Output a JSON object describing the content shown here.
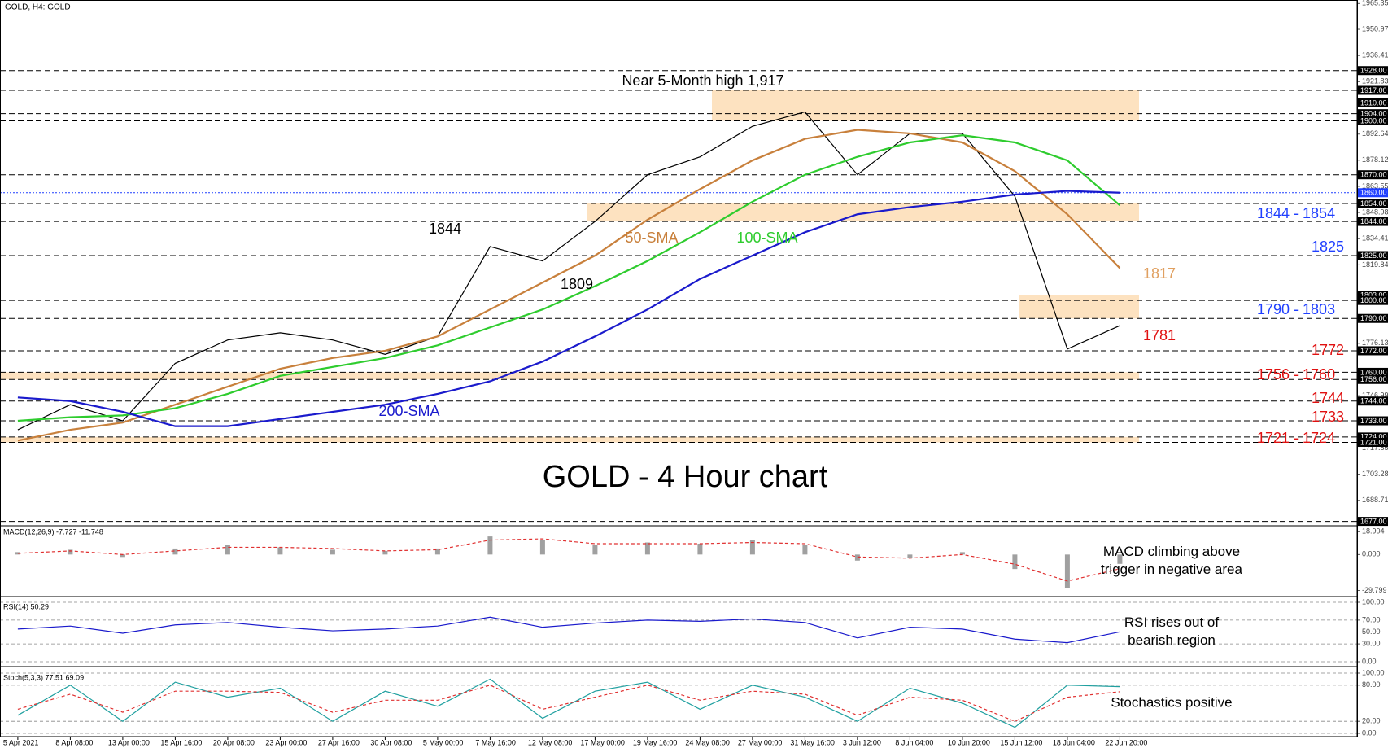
{
  "chart_data": [
    {
      "type": "line",
      "symbol": "GOLD, H4:  GOLD",
      "title": "GOLD - 4 Hour chart",
      "categories": [
        "5 Apr 2021",
        "8 Apr 08:00",
        "13 Apr 00:00",
        "15 Apr 16:00",
        "20 Apr 08:00",
        "23 Apr 00:00",
        "27 Apr 16:00",
        "30 Apr 08:00",
        "5 May 00:00",
        "7 May 16:00",
        "12 May 08:00",
        "17 May 00:00",
        "19 May 16:00",
        "24 May 08:00",
        "27 May 00:00",
        "31 May 16:00",
        "3 Jun 12:00",
        "8 Jun 04:00",
        "10 Jun 20:00",
        "15 Jun 12:00",
        "18 Jun 04:00",
        "22 Jun 20:00"
      ],
      "series": [
        {
          "color": "#000000",
          "values": [
            1728,
            1742,
            1733,
            1765,
            1778,
            1782,
            1778,
            1770,
            1780,
            1830,
            1822,
            1844,
            1870,
            1880,
            1897,
            1905,
            1870,
            1893,
            1893,
            1858,
            1773,
            1786
          ]
        },
        {
          "name": "50-SMA",
          "color": "#c8803c",
          "values": [
            1722,
            1728,
            1732,
            1742,
            1752,
            1762,
            1768,
            1772,
            1780,
            1795,
            1810,
            1825,
            1845,
            1862,
            1878,
            1890,
            1895,
            1893,
            1888,
            1872,
            1848,
            1818
          ]
        },
        {
          "name": "100-SMA",
          "color": "#2ecc2e",
          "values": [
            1733,
            1735,
            1736,
            1740,
            1748,
            1758,
            1763,
            1768,
            1775,
            1785,
            1795,
            1808,
            1822,
            1838,
            1855,
            1870,
            1880,
            1888,
            1892,
            1888,
            1878,
            1853
          ]
        },
        {
          "name": "200-SMA",
          "color": "#1a1acc",
          "values": [
            1746,
            1744,
            1738,
            1730,
            1730,
            1734,
            1738,
            1742,
            1748,
            1755,
            1766,
            1780,
            1795,
            1812,
            1825,
            1838,
            1848,
            1852,
            1855,
            1859,
            1861,
            1860
          ]
        }
      ],
      "ylim": [
        1675,
        1967.3
      ],
      "yticks": [
        1965.35,
        1950.97,
        1936.41,
        1921.83,
        1892.64,
        1878.12,
        1863.55,
        1848.98,
        1834.41,
        1819.84,
        1776.13,
        1746.99,
        1717.85,
        1703.28,
        1688.71
      ],
      "levels": [
        {
          "value": 1928,
          "label": "1928.00"
        },
        {
          "value": 1917,
          "label": "1917.00"
        },
        {
          "value": 1910,
          "label": "1910.00"
        },
        {
          "value": 1904,
          "label": "1904.00"
        },
        {
          "value": 1900,
          "label": "1900.00"
        },
        {
          "value": 1870,
          "label": "1870.00"
        },
        {
          "value": 1860,
          "label": "1860.00",
          "color": "#1f3fff"
        },
        {
          "value": 1854,
          "label": "1854.00"
        },
        {
          "value": 1844,
          "label": "1844.00"
        },
        {
          "value": 1825,
          "label": "1825.00"
        },
        {
          "value": 1803,
          "label": "1803.00"
        },
        {
          "value": 1800,
          "label": "1800.00"
        },
        {
          "value": 1790,
          "label": "1790.00"
        },
        {
          "value": 1772,
          "label": "1772.00"
        },
        {
          "value": 1760,
          "label": "1760.00"
        },
        {
          "value": 1756,
          "label": "1756.00"
        },
        {
          "value": 1744,
          "label": "1744.00"
        },
        {
          "value": 1733,
          "label": "1733.00"
        },
        {
          "value": 1724,
          "label": "1724.00"
        },
        {
          "value": 1721,
          "label": "1721.00"
        },
        {
          "value": 1677,
          "label": "1677.00"
        }
      ],
      "zones": [
        [
          1900,
          1917
        ],
        [
          1844,
          1854
        ],
        [
          1790,
          1803
        ],
        [
          1756,
          1760
        ],
        [
          1721,
          1724
        ]
      ],
      "zone_color": "#fde2c0",
      "annotations": [
        {
          "text": "Near 5-Month high 1,917",
          "color": "#000000"
        },
        {
          "text": "1844",
          "color": "#000000"
        },
        {
          "text": "1809",
          "color": "#000000"
        },
        {
          "text": "1844 - 1854",
          "color": "#1f3fff"
        },
        {
          "text": "1825",
          "color": "#1f3fff"
        },
        {
          "text": "1817",
          "color": "#e0a060"
        },
        {
          "text": "1790 - 1803",
          "color": "#1f3fff"
        },
        {
          "text": "1781",
          "color": "#e01010"
        },
        {
          "text": "1772",
          "color": "#e01010"
        },
        {
          "text": "1756 - 1760",
          "color": "#e01010"
        },
        {
          "text": "1744",
          "color": "#e01010"
        },
        {
          "text": "1733",
          "color": "#e01010"
        },
        {
          "text": "1721 - 1724",
          "color": "#e01010"
        }
      ]
    },
    {
      "type": "combo",
      "title": "MACD(12,26,9) -7.727 -11.748",
      "series": [
        {
          "type": "bar",
          "color": "#a0a0a0",
          "values": [
            2,
            4,
            -2,
            5,
            8,
            6,
            4,
            3,
            5,
            15,
            12,
            8,
            10,
            9,
            12,
            8,
            -5,
            -3,
            2,
            -12,
            -28,
            -7.727
          ]
        },
        {
          "type": "line",
          "dashed": true,
          "color": "#e03030",
          "values": [
            1,
            3,
            0,
            3,
            6,
            6,
            5,
            3,
            4,
            12,
            13,
            9,
            9,
            9,
            10,
            9,
            -2,
            -3,
            0,
            -8,
            -22,
            -11.748
          ]
        }
      ],
      "ylim": [
        -33.5,
        22.5
      ],
      "yticks": [
        18.904,
        {
          "value": 0,
          "label": "0.000"
        },
        -29.799
      ],
      "grid": false,
      "note": [
        "MACD climbing above",
        "trigger in negative area"
      ]
    },
    {
      "type": "line",
      "title": "RSI(14) 50.29",
      "series": [
        {
          "color": "#1a1acc",
          "values": [
            55,
            60,
            48,
            62,
            66,
            58,
            52,
            55,
            60,
            75,
            58,
            65,
            70,
            68,
            72,
            66,
            40,
            58,
            55,
            38,
            32,
            50.29
          ]
        }
      ],
      "ylim": [
        0,
        100
      ],
      "yticks": [
        {
          "value": 100,
          "label": "100.00"
        },
        {
          "value": 70,
          "label": "70.00"
        },
        {
          "value": 50,
          "label": "50.00"
        },
        {
          "value": 30,
          "label": "30.00"
        },
        {
          "value": 0,
          "label": "0.00"
        }
      ],
      "grid": true,
      "note": [
        "RSI rises out of",
        "bearish region"
      ]
    },
    {
      "type": "line",
      "title": "Stoch(5,3,3) 77.51 69.09",
      "series": [
        {
          "color": "#20a0a0",
          "values": [
            30,
            80,
            20,
            85,
            60,
            75,
            20,
            70,
            45,
            90,
            25,
            70,
            85,
            40,
            80,
            60,
            20,
            75,
            50,
            10,
            80,
            77.51
          ]
        },
        {
          "color": "#e03030",
          "dashed": true,
          "values": [
            40,
            65,
            35,
            70,
            70,
            68,
            35,
            55,
            55,
            80,
            40,
            60,
            80,
            55,
            70,
            65,
            30,
            60,
            55,
            20,
            60,
            69.09
          ]
        }
      ],
      "ylim": [
        0,
        100
      ],
      "yticks": [
        {
          "value": 100,
          "label": "100.00"
        },
        {
          "value": 80,
          "label": "80.00"
        },
        {
          "value": 20,
          "label": "20.00"
        },
        {
          "value": 0,
          "label": "0.00"
        }
      ],
      "grid": true,
      "note": [
        "Stochastics positive"
      ]
    }
  ]
}
